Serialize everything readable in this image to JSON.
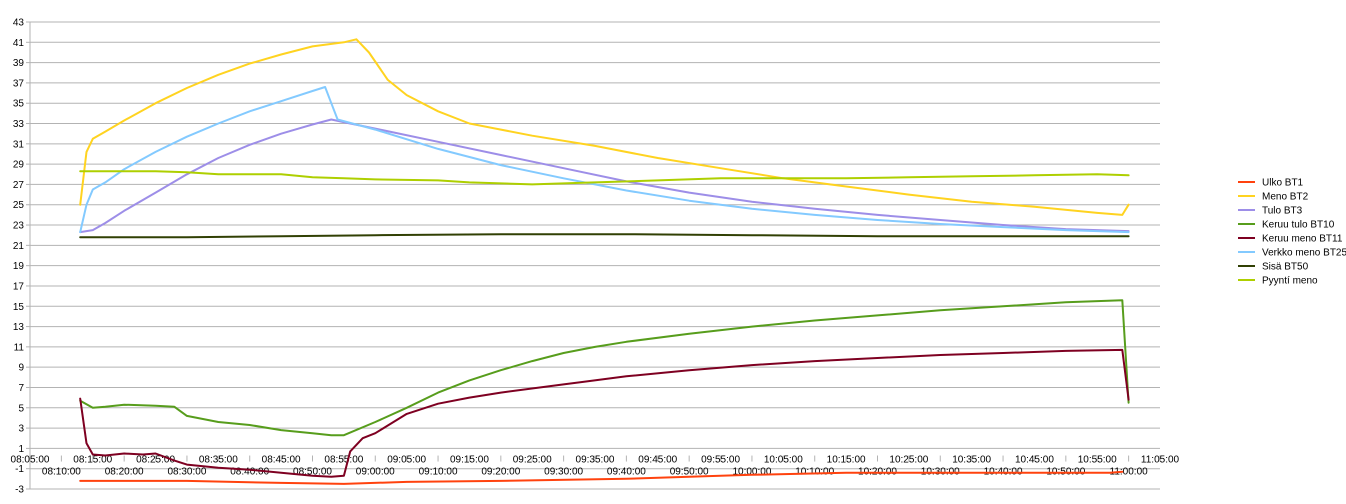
{
  "chart_data": {
    "type": "line",
    "title": "",
    "xlabel": "",
    "ylabel": "",
    "ylim": [
      -3,
      43
    ],
    "yticks": [
      -3,
      -1,
      1,
      3,
      5,
      7,
      9,
      11,
      13,
      15,
      17,
      19,
      21,
      23,
      25,
      27,
      29,
      31,
      33,
      35,
      37,
      39,
      41,
      43
    ],
    "xlim": [
      "08:05:00",
      "11:05:00"
    ],
    "x_ticks_upper": [
      "08:05:00",
      "08:15:00",
      "08:25:00",
      "08:35:00",
      "08:45:00",
      "08:55:00",
      "09:05:00",
      "09:15:00",
      "09:25:00",
      "09:35:00",
      "09:45:00",
      "09:55:00",
      "10:05:00",
      "10:15:00",
      "10:25:00",
      "10:35:00",
      "10:45:00",
      "10:55:00",
      "11:05:00"
    ],
    "x_ticks_lower": [
      "08:10:00",
      "08:20:00",
      "08:30:00",
      "08:40:00",
      "08:50:00",
      "09:00:00",
      "09:10:00",
      "09:20:00",
      "09:30:00",
      "09:40:00",
      "09:50:00",
      "10:00:00",
      "10:10:00",
      "10:20:00",
      "10:30:00",
      "10:40:00",
      "10:50:00",
      "11:00:00"
    ],
    "grid": true,
    "legend_position": "right",
    "series": [
      {
        "name": "Ulko BT1",
        "color": "#ff420e",
        "points": [
          [
            "08:13:00",
            -2.2
          ],
          [
            "08:30:00",
            -2.2
          ],
          [
            "08:45:00",
            -2.4
          ],
          [
            "08:55:00",
            -2.5
          ],
          [
            "09:05:00",
            -2.3
          ],
          [
            "09:20:00",
            -2.2
          ],
          [
            "09:40:00",
            -2.0
          ],
          [
            "09:50:00",
            -1.8
          ],
          [
            "10:00:00",
            -1.6
          ],
          [
            "10:15:00",
            -1.4
          ],
          [
            "10:30:00",
            -1.4
          ],
          [
            "10:50:00",
            -1.4
          ],
          [
            "10:57:00",
            -1.4
          ],
          [
            "10:59:00",
            -1.3
          ]
        ]
      },
      {
        "name": "Meno BT2",
        "color": "#ffd320",
        "points": [
          [
            "08:13:00",
            25.0
          ],
          [
            "08:14:00",
            30.2
          ],
          [
            "08:15:00",
            31.5
          ],
          [
            "08:17:00",
            32.2
          ],
          [
            "08:20:00",
            33.3
          ],
          [
            "08:25:00",
            35.0
          ],
          [
            "08:30:00",
            36.5
          ],
          [
            "08:35:00",
            37.8
          ],
          [
            "08:40:00",
            38.9
          ],
          [
            "08:45:00",
            39.8
          ],
          [
            "08:50:00",
            40.6
          ],
          [
            "08:55:00",
            41.0
          ],
          [
            "08:57:00",
            41.3
          ],
          [
            "08:59:00",
            40.0
          ],
          [
            "09:02:00",
            37.3
          ],
          [
            "09:05:00",
            35.8
          ],
          [
            "09:10:00",
            34.2
          ],
          [
            "09:15:00",
            33.0
          ],
          [
            "09:25:00",
            31.8
          ],
          [
            "09:35:00",
            30.8
          ],
          [
            "09:45:00",
            29.6
          ],
          [
            "09:55:00",
            28.6
          ],
          [
            "10:05:00",
            27.6
          ],
          [
            "10:15:00",
            26.8
          ],
          [
            "10:25:00",
            26.0
          ],
          [
            "10:35:00",
            25.3
          ],
          [
            "10:45:00",
            24.8
          ],
          [
            "10:55:00",
            24.2
          ],
          [
            "10:59:00",
            24.0
          ],
          [
            "11:00:00",
            25.0
          ]
        ]
      },
      {
        "name": "Tulo BT3",
        "color": "#9d8ee8",
        "points": [
          [
            "08:13:00",
            22.3
          ],
          [
            "08:15:00",
            22.5
          ],
          [
            "08:17:00",
            23.2
          ],
          [
            "08:20:00",
            24.4
          ],
          [
            "08:25:00",
            26.2
          ],
          [
            "08:30:00",
            28.0
          ],
          [
            "08:35:00",
            29.6
          ],
          [
            "08:40:00",
            30.9
          ],
          [
            "08:45:00",
            32.0
          ],
          [
            "08:50:00",
            32.9
          ],
          [
            "08:53:00",
            33.4
          ],
          [
            "08:56:00",
            33.0
          ],
          [
            "09:00:00",
            32.5
          ],
          [
            "09:10:00",
            31.2
          ],
          [
            "09:20:00",
            29.9
          ],
          [
            "09:30:00",
            28.6
          ],
          [
            "09:40:00",
            27.3
          ],
          [
            "09:50:00",
            26.2
          ],
          [
            "10:00:00",
            25.3
          ],
          [
            "10:10:00",
            24.6
          ],
          [
            "10:20:00",
            24.0
          ],
          [
            "10:30:00",
            23.5
          ],
          [
            "10:40:00",
            23.0
          ],
          [
            "10:50:00",
            22.6
          ],
          [
            "11:00:00",
            22.4
          ]
        ]
      },
      {
        "name": "Keruu tulo BT10",
        "color": "#579d1c",
        "points": [
          [
            "08:13:00",
            5.7
          ],
          [
            "08:15:00",
            5.0
          ],
          [
            "08:17:00",
            5.1
          ],
          [
            "08:20:00",
            5.3
          ],
          [
            "08:25:00",
            5.2
          ],
          [
            "08:28:00",
            5.1
          ],
          [
            "08:30:00",
            4.2
          ],
          [
            "08:35:00",
            3.6
          ],
          [
            "08:40:00",
            3.3
          ],
          [
            "08:45:00",
            2.8
          ],
          [
            "08:50:00",
            2.5
          ],
          [
            "08:53:00",
            2.3
          ],
          [
            "08:55:00",
            2.3
          ],
          [
            "09:00:00",
            3.6
          ],
          [
            "09:05:00",
            5.0
          ],
          [
            "09:10:00",
            6.5
          ],
          [
            "09:15:00",
            7.7
          ],
          [
            "09:20:00",
            8.7
          ],
          [
            "09:25:00",
            9.6
          ],
          [
            "09:30:00",
            10.4
          ],
          [
            "09:35:00",
            11.0
          ],
          [
            "09:40:00",
            11.5
          ],
          [
            "09:50:00",
            12.3
          ],
          [
            "10:00:00",
            13.0
          ],
          [
            "10:10:00",
            13.6
          ],
          [
            "10:20:00",
            14.1
          ],
          [
            "10:30:00",
            14.6
          ],
          [
            "10:40:00",
            15.0
          ],
          [
            "10:50:00",
            15.4
          ],
          [
            "10:59:00",
            15.6
          ],
          [
            "11:00:00",
            5.5
          ]
        ]
      },
      {
        "name": "Keruu meno BT11",
        "color": "#7e0021",
        "points": [
          [
            "08:13:00",
            5.9
          ],
          [
            "08:14:00",
            1.5
          ],
          [
            "08:15:00",
            0.4
          ],
          [
            "08:17:00",
            0.3
          ],
          [
            "08:20:00",
            0.5
          ],
          [
            "08:23:00",
            0.4
          ],
          [
            "08:25:00",
            0.5
          ],
          [
            "08:28:00",
            -0.2
          ],
          [
            "08:30:00",
            -0.6
          ],
          [
            "08:35:00",
            -0.9
          ],
          [
            "08:40:00",
            -1.1
          ],
          [
            "08:45:00",
            -1.4
          ],
          [
            "08:50:00",
            -1.7
          ],
          [
            "08:53:00",
            -1.8
          ],
          [
            "08:55:00",
            -1.7
          ],
          [
            "08:56:00",
            0.7
          ],
          [
            "08:58:00",
            2.0
          ],
          [
            "09:00:00",
            2.5
          ],
          [
            "09:05:00",
            4.4
          ],
          [
            "09:10:00",
            5.4
          ],
          [
            "09:15:00",
            6.0
          ],
          [
            "09:20:00",
            6.5
          ],
          [
            "09:30:00",
            7.3
          ],
          [
            "09:40:00",
            8.1
          ],
          [
            "09:50:00",
            8.7
          ],
          [
            "10:00:00",
            9.2
          ],
          [
            "10:10:00",
            9.6
          ],
          [
            "10:20:00",
            9.9
          ],
          [
            "10:30:00",
            10.2
          ],
          [
            "10:40:00",
            10.4
          ],
          [
            "10:50:00",
            10.6
          ],
          [
            "10:59:00",
            10.7
          ],
          [
            "11:00:00",
            5.8
          ]
        ]
      },
      {
        "name": "Verkko meno BT25",
        "color": "#83caff",
        "points": [
          [
            "08:13:00",
            22.3
          ],
          [
            "08:14:00",
            25.0
          ],
          [
            "08:15:00",
            26.5
          ],
          [
            "08:17:00",
            27.2
          ],
          [
            "08:20:00",
            28.5
          ],
          [
            "08:25:00",
            30.2
          ],
          [
            "08:30:00",
            31.7
          ],
          [
            "08:35:00",
            33.0
          ],
          [
            "08:40:00",
            34.2
          ],
          [
            "08:45:00",
            35.2
          ],
          [
            "08:50:00",
            36.2
          ],
          [
            "08:52:00",
            36.6
          ],
          [
            "08:53:00",
            35.0
          ],
          [
            "08:54:00",
            33.4
          ],
          [
            "09:00:00",
            32.4
          ],
          [
            "09:10:00",
            30.5
          ],
          [
            "09:20:00",
            28.9
          ],
          [
            "09:30:00",
            27.6
          ],
          [
            "09:40:00",
            26.4
          ],
          [
            "09:50:00",
            25.4
          ],
          [
            "10:00:00",
            24.6
          ],
          [
            "10:10:00",
            24.0
          ],
          [
            "10:20:00",
            23.5
          ],
          [
            "10:30:00",
            23.1
          ],
          [
            "10:40:00",
            22.8
          ],
          [
            "10:50:00",
            22.5
          ],
          [
            "11:00:00",
            22.3
          ]
        ]
      },
      {
        "name": "Sisä BT50",
        "color": "#314004",
        "points": [
          [
            "08:13:00",
            21.8
          ],
          [
            "08:30:00",
            21.8
          ],
          [
            "08:45:00",
            21.9
          ],
          [
            "09:00:00",
            22.0
          ],
          [
            "09:20:00",
            22.1
          ],
          [
            "09:40:00",
            22.1
          ],
          [
            "10:00:00",
            22.0
          ],
          [
            "10:20:00",
            21.9
          ],
          [
            "10:40:00",
            21.9
          ],
          [
            "11:00:00",
            21.9
          ]
        ]
      },
      {
        "name": "Pyyntí meno",
        "color": "#aecf00",
        "points": [
          [
            "08:13:00",
            28.3
          ],
          [
            "08:25:00",
            28.3
          ],
          [
            "08:30:00",
            28.2
          ],
          [
            "08:35:00",
            28.0
          ],
          [
            "08:45:00",
            28.0
          ],
          [
            "08:50:00",
            27.7
          ],
          [
            "08:55:00",
            27.6
          ],
          [
            "09:00:00",
            27.5
          ],
          [
            "09:10:00",
            27.4
          ],
          [
            "09:15:00",
            27.2
          ],
          [
            "09:25:00",
            27.0
          ],
          [
            "09:35:00",
            27.2
          ],
          [
            "09:45:00",
            27.4
          ],
          [
            "09:55:00",
            27.6
          ],
          [
            "10:05:00",
            27.6
          ],
          [
            "10:15:00",
            27.6
          ],
          [
            "10:25:00",
            27.7
          ],
          [
            "10:35:00",
            27.8
          ],
          [
            "10:45:00",
            27.9
          ],
          [
            "10:55:00",
            28.0
          ],
          [
            "11:00:00",
            27.9
          ]
        ]
      }
    ]
  }
}
